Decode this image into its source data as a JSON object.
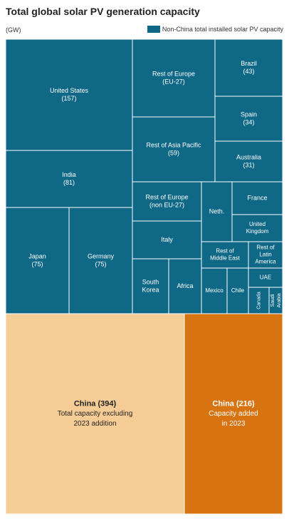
{
  "chart_data": {
    "type": "treemap",
    "title": "Total global solar PV generation capacity",
    "unit_label": "(GW)",
    "legend": [
      {
        "label": "Non-China total installed solar PV capacity",
        "color": "#0f6885"
      }
    ],
    "colors": {
      "teal": "#0f6885",
      "china_existing": "#f6cc96",
      "china_added": "#d77411"
    },
    "nodes": [
      {
        "id": "united-states",
        "lines": [
          "United States",
          "(157)"
        ],
        "value": 157,
        "group": "teal"
      },
      {
        "id": "rest-of-europe-eu27",
        "lines": [
          "Rest of Europe",
          "(EU-27)"
        ],
        "group": "teal"
      },
      {
        "id": "brazil",
        "lines": [
          "Brazil",
          "(43)"
        ],
        "value": 43,
        "group": "teal"
      },
      {
        "id": "spain",
        "lines": [
          "Spain",
          "(34)"
        ],
        "value": 34,
        "group": "teal"
      },
      {
        "id": "rest-of-asia-pacific",
        "lines": [
          "Rest of Asia Pacific",
          "(59)"
        ],
        "value": 59,
        "group": "teal"
      },
      {
        "id": "australia",
        "lines": [
          "Australia",
          "(31)"
        ],
        "value": 31,
        "group": "teal"
      },
      {
        "id": "india",
        "lines": [
          "India",
          "(81)"
        ],
        "value": 81,
        "group": "teal"
      },
      {
        "id": "rest-of-europe-non-eu27",
        "lines": [
          "Rest of Europe",
          "(non EU-27)"
        ],
        "group": "teal"
      },
      {
        "id": "netherlands",
        "lines": [
          "Neth."
        ],
        "group": "teal"
      },
      {
        "id": "france",
        "lines": [
          "France"
        ],
        "group": "teal"
      },
      {
        "id": "united-kingdom",
        "lines": [
          "United",
          "Kingdom"
        ],
        "group": "teal"
      },
      {
        "id": "japan",
        "lines": [
          "Japan",
          "(75)"
        ],
        "value": 75,
        "group": "teal"
      },
      {
        "id": "germany",
        "lines": [
          "Germany",
          "(75)"
        ],
        "value": 75,
        "group": "teal"
      },
      {
        "id": "italy",
        "lines": [
          "Italy"
        ],
        "group": "teal"
      },
      {
        "id": "rest-of-middle-east",
        "lines": [
          "Rest of",
          "Middle East"
        ],
        "group": "teal"
      },
      {
        "id": "rest-of-latin-america",
        "lines": [
          "Rest of",
          "Latin",
          "America"
        ],
        "group": "teal"
      },
      {
        "id": "south-korea",
        "lines": [
          "South",
          "Korea"
        ],
        "group": "teal"
      },
      {
        "id": "africa",
        "lines": [
          "Africa"
        ],
        "group": "teal"
      },
      {
        "id": "mexico",
        "lines": [
          "Mexico"
        ],
        "group": "teal"
      },
      {
        "id": "chile",
        "lines": [
          "Chile"
        ],
        "group": "teal"
      },
      {
        "id": "uae",
        "lines": [
          "UAE"
        ],
        "group": "teal"
      },
      {
        "id": "canada",
        "lines": [
          "Canada"
        ],
        "group": "teal",
        "vertical": true
      },
      {
        "id": "saudi-arabia",
        "lines": [
          "Saudi",
          "Arabia"
        ],
        "group": "teal",
        "vertical": true
      },
      {
        "id": "china-existing",
        "lines": [
          "China (394)",
          "Total capacity excluding",
          "2023 addition"
        ],
        "value": 394,
        "group": "china_existing"
      },
      {
        "id": "china-added",
        "lines": [
          "China (216)",
          "Capacity added",
          "in 2023"
        ],
        "value": 216,
        "group": "china_added"
      }
    ]
  }
}
